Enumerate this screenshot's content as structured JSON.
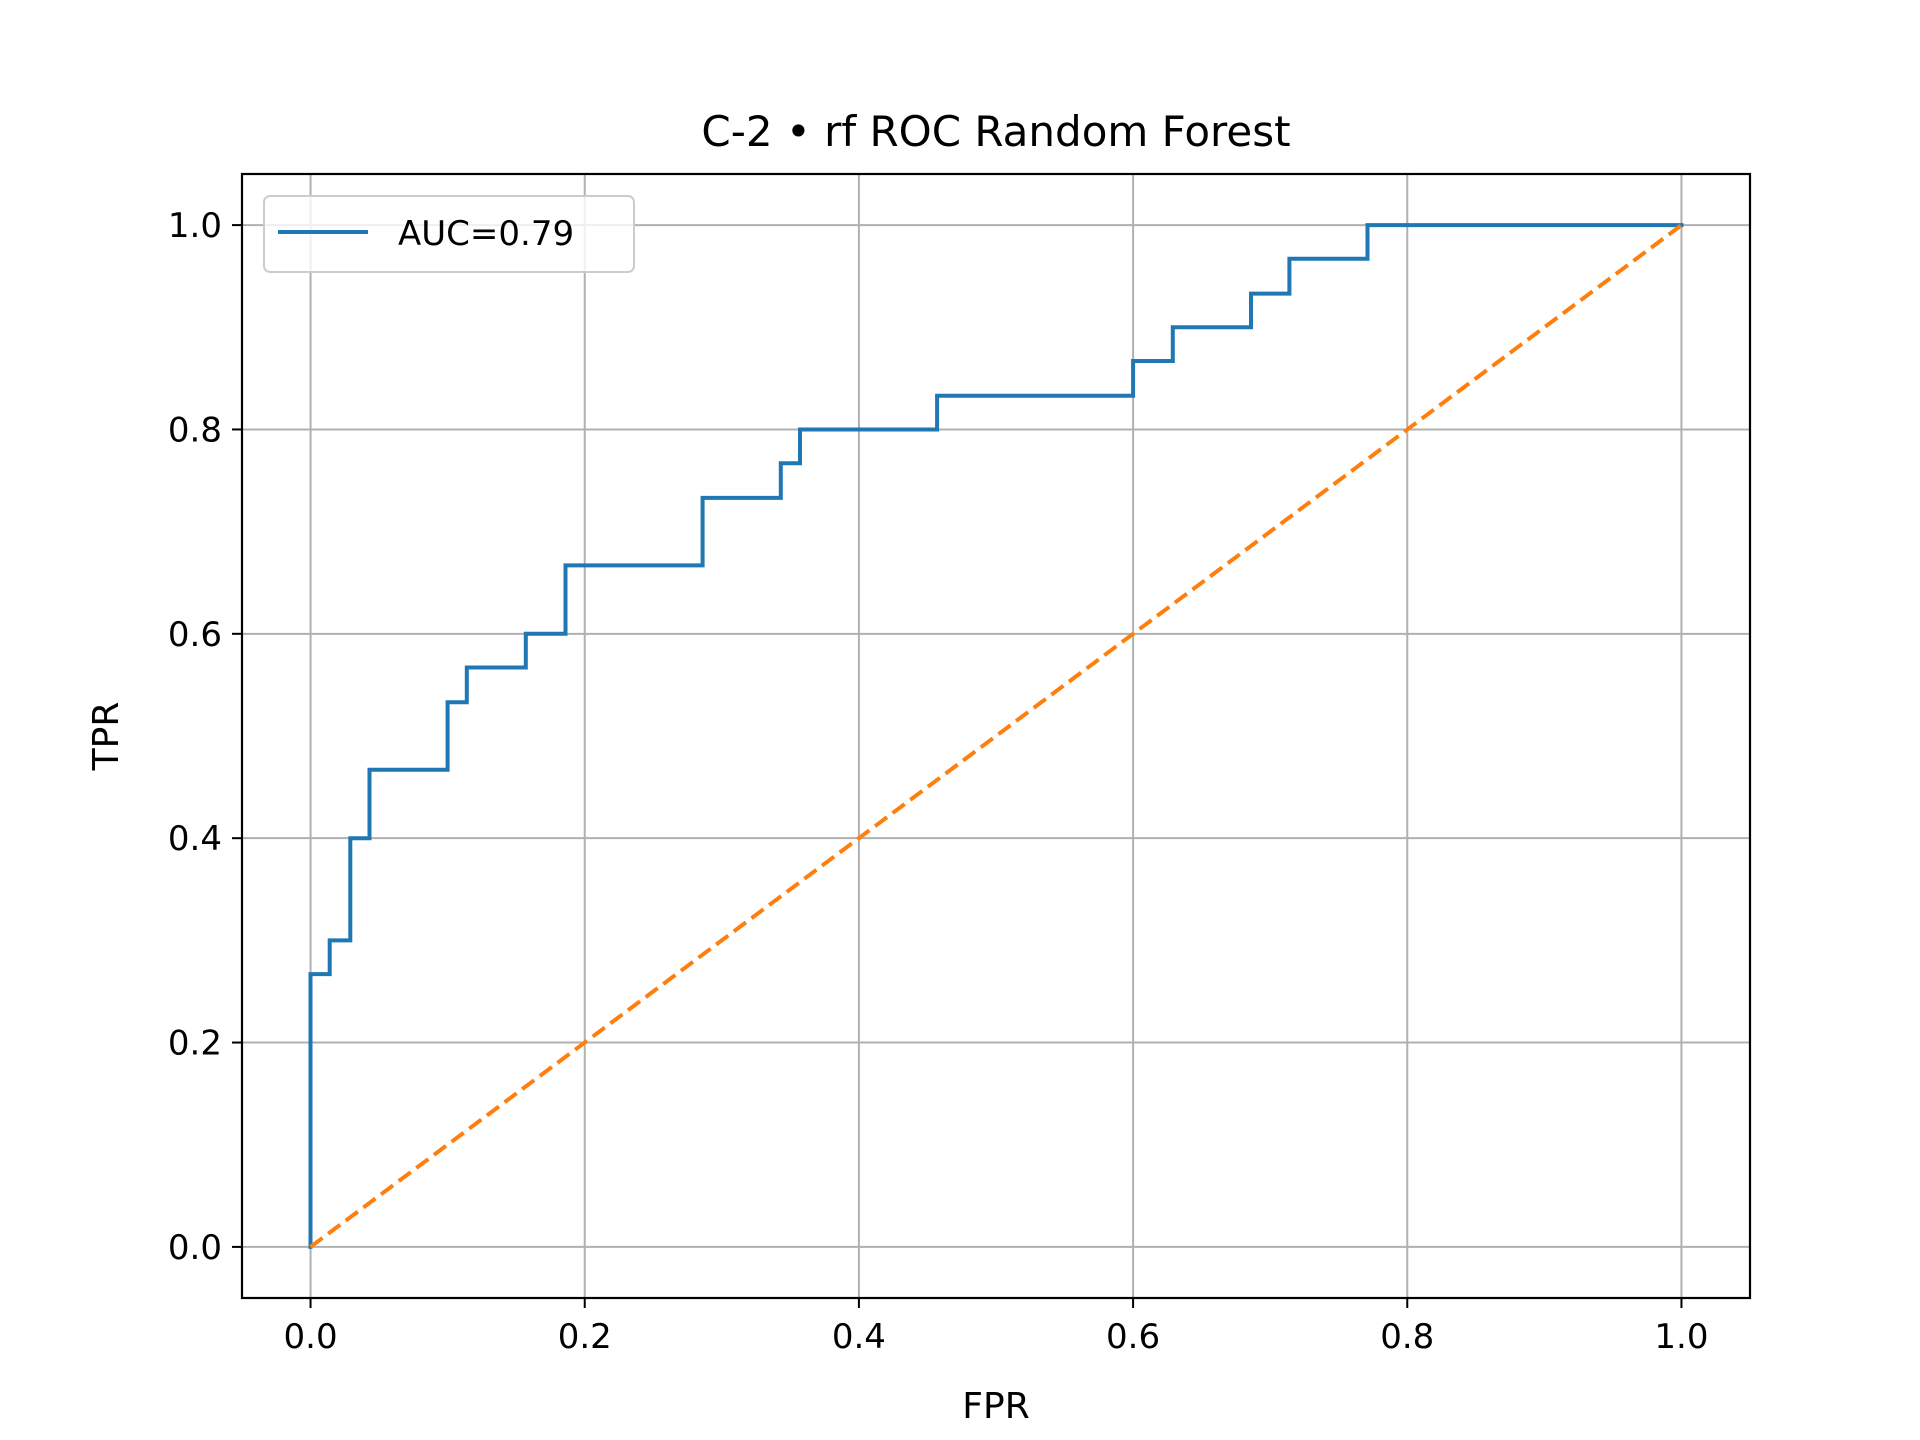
{
  "chart_data": {
    "type": "line",
    "title": "C-2 • rf ROC Random Forest",
    "xlabel": "FPR",
    "ylabel": "TPR",
    "xlim": [
      -0.05,
      1.05
    ],
    "ylim": [
      -0.05,
      1.05
    ],
    "xticks": [
      0.0,
      0.2,
      0.4,
      0.6,
      0.8,
      1.0
    ],
    "yticks": [
      0.0,
      0.2,
      0.4,
      0.6,
      0.8,
      1.0
    ],
    "tick_labels_x": [
      "0.0",
      "0.2",
      "0.4",
      "0.6",
      "0.8",
      "1.0"
    ],
    "tick_labels_y": [
      "0.0",
      "0.2",
      "0.4",
      "0.6",
      "0.8",
      "1.0"
    ],
    "grid": true,
    "legend_position": "upper-left",
    "series": [
      {
        "name": "AUC=0.79",
        "color": "#1f77b4",
        "style": "solid",
        "x": [
          0.0,
          0.0,
          0.014,
          0.014,
          0.029,
          0.029,
          0.043,
          0.043,
          0.1,
          0.1,
          0.114,
          0.114,
          0.157,
          0.157,
          0.186,
          0.186,
          0.286,
          0.286,
          0.343,
          0.343,
          0.357,
          0.357,
          0.457,
          0.457,
          0.6,
          0.6,
          0.629,
          0.629,
          0.686,
          0.686,
          0.714,
          0.714,
          0.771,
          0.771,
          1.0
        ],
        "y": [
          0.0,
          0.267,
          0.267,
          0.3,
          0.3,
          0.4,
          0.4,
          0.467,
          0.467,
          0.533,
          0.533,
          0.567,
          0.567,
          0.6,
          0.6,
          0.667,
          0.667,
          0.733,
          0.733,
          0.767,
          0.767,
          0.8,
          0.8,
          0.833,
          0.833,
          0.867,
          0.867,
          0.9,
          0.9,
          0.933,
          0.933,
          0.967,
          0.967,
          1.0,
          1.0
        ]
      },
      {
        "color": "#ff7f0e",
        "style": "dashed",
        "x": [
          0.0,
          1.0
        ],
        "y": [
          0.0,
          1.0
        ]
      }
    ]
  }
}
